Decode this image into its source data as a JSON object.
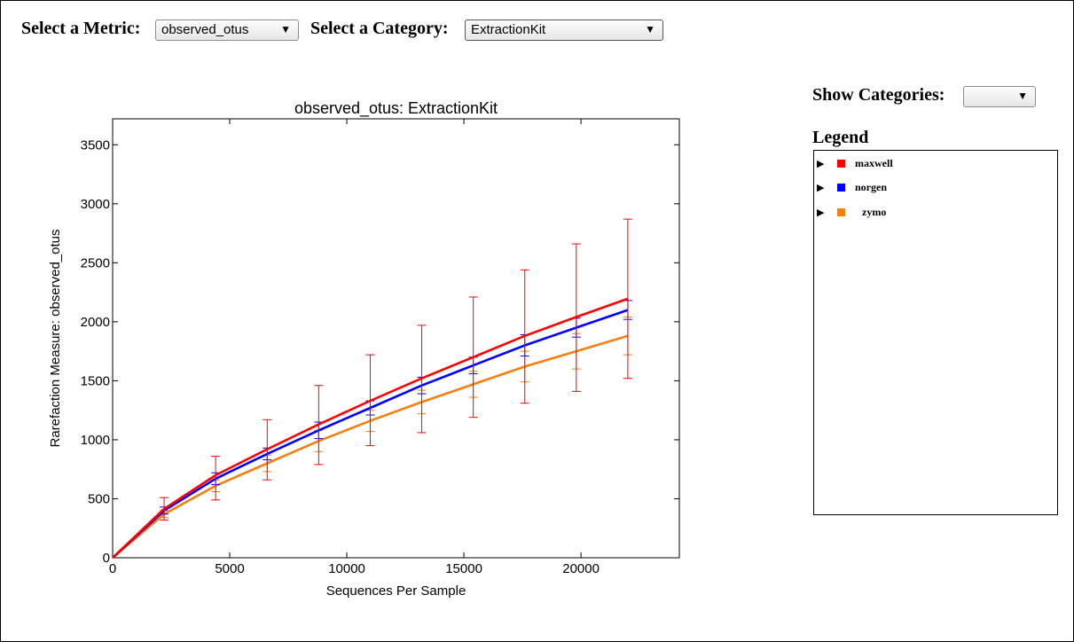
{
  "controls": {
    "metric_label": "Select a Metric:",
    "metric_value": "observed_otus",
    "category_label": "Select a Category:",
    "category_value": "ExtractionKit",
    "show_categories_label": "Show Categories:",
    "show_categories_value": "",
    "arrow_glyph": "▼"
  },
  "legend": {
    "heading": "Legend",
    "expand_glyph": "▶",
    "items": [
      {
        "name": "maxwell",
        "color": "#ff0000"
      },
      {
        "name": "norgen",
        "color": "#0000ff"
      },
      {
        "name": "zymo",
        "color": "#f57f11"
      }
    ]
  },
  "chart_data": {
    "type": "line",
    "title": "observed_otus: ExtractionKit",
    "xlabel": "Sequences Per Sample",
    "ylabel": "Rarefaction Measure: observed_otus",
    "xlim": [
      0,
      24200
    ],
    "ylim": [
      0,
      3720
    ],
    "xticks": [
      0,
      5000,
      10000,
      15000,
      20000
    ],
    "yticks": [
      0,
      500,
      1000,
      1500,
      2000,
      2500,
      3000,
      3500
    ],
    "grid": false,
    "x": [
      0,
      2200,
      4400,
      6600,
      8800,
      11000,
      13200,
      15400,
      17600,
      19800,
      22000
    ],
    "series": [
      {
        "name": "maxwell",
        "color": "#ff0000",
        "values": [
          0,
          415,
          700,
          920,
          1130,
          1330,
          1520,
          1700,
          1880,
          2040,
          2195
        ],
        "err_low": [
          0,
          320,
          490,
          660,
          790,
          950,
          1060,
          1190,
          1310,
          1410,
          1520
        ],
        "err_high": [
          0,
          510,
          860,
          1170,
          1460,
          1720,
          1970,
          2210,
          2440,
          2660,
          2870
        ]
      },
      {
        "name": "norgen",
        "color": "#0000ff",
        "values": [
          0,
          400,
          670,
          880,
          1080,
          1270,
          1460,
          1630,
          1800,
          1950,
          2100
        ],
        "err_low": [
          0,
          370,
          620,
          830,
          1010,
          1210,
          1390,
          1560,
          1710,
          1870,
          2020
        ],
        "err_high": [
          0,
          430,
          720,
          930,
          1150,
          1330,
          1530,
          1700,
          1890,
          2030,
          2180
        ]
      },
      {
        "name": "zymo",
        "color": "#f57f11",
        "values": [
          0,
          370,
          610,
          800,
          990,
          1160,
          1320,
          1470,
          1620,
          1750,
          1880
        ],
        "err_low": [
          0,
          340,
          560,
          730,
          900,
          1070,
          1220,
          1360,
          1490,
          1600,
          1720
        ],
        "err_high": [
          0,
          400,
          660,
          870,
          1080,
          1250,
          1420,
          1580,
          1750,
          1900,
          2040
        ]
      }
    ]
  }
}
